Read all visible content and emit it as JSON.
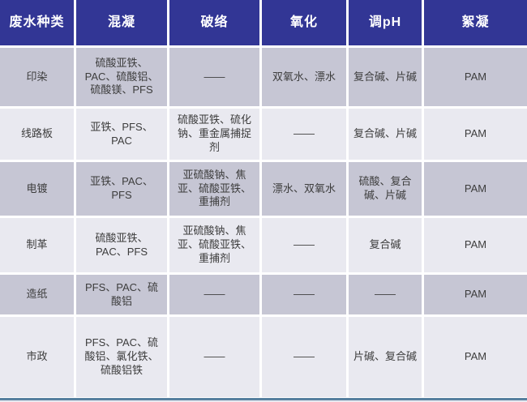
{
  "table": {
    "headers": [
      "废水种类",
      "混凝",
      "破络",
      "氧化",
      "调pH",
      "絮凝"
    ],
    "rows": [
      [
        "印染",
        "硫酸亚铁、PAC、硫酸铝、硫酸镁、PFS",
        "——",
        "双氧水、漂水",
        "复合碱、片碱",
        "PAM"
      ],
      [
        "线路板",
        "亚铁、PFS、PAC",
        "硫酸亚铁、硫化钠、重金属捕捉剂",
        "——",
        "复合碱、片碱",
        "PAM"
      ],
      [
        "电镀",
        "亚铁、PAC、PFS",
        "亚硫酸钠、焦亚、硫酸亚铁、重捕剂",
        "漂水、双氧水",
        "硫酸、复合碱、片碱",
        "PAM"
      ],
      [
        "制革",
        "硫酸亚铁、PAC、PFS",
        "亚硫酸钠、焦亚、硫酸亚铁、重捕剂",
        "——",
        "复合碱",
        "PAM"
      ],
      [
        "造纸",
        "PFS、PAC、硫酸铝",
        "——",
        "——",
        "——",
        "PAM"
      ],
      [
        "市政",
        "PFS、PAC、硫酸铝、氯化铁、硫酸铝铁",
        "——",
        "——",
        "片碱、复合碱",
        "PAM"
      ]
    ]
  },
  "colors": {
    "header_bg": "#323695",
    "header_text": "#ffffff",
    "row_odd_bg": "#c6c6d4",
    "row_even_bg": "#e9e9f0",
    "body_text": "#3d3d3d",
    "bottom_accent_line": "#57809f"
  }
}
